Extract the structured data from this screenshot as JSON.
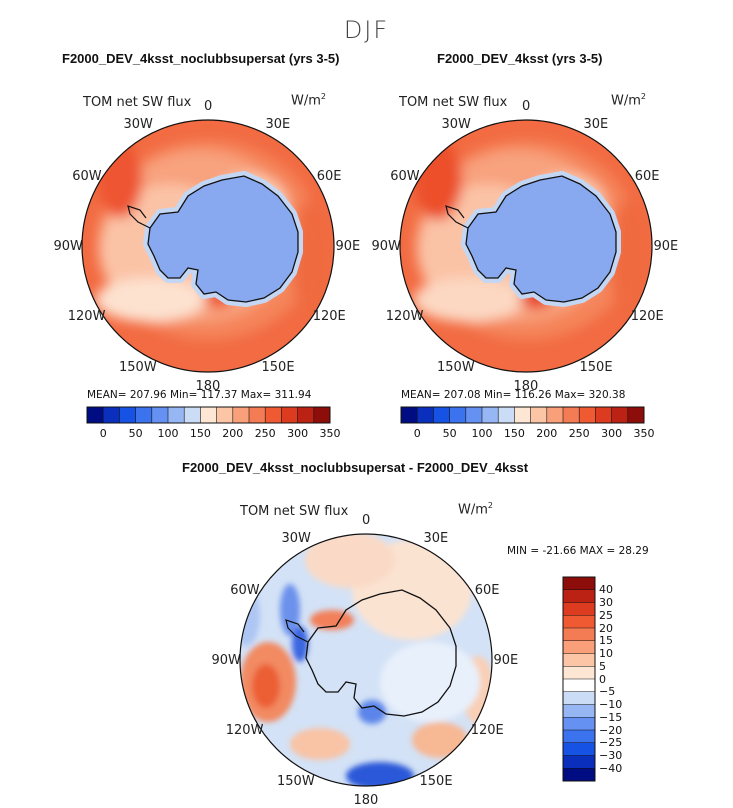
{
  "title": "DJF",
  "colors": {
    "ocean_high": "#f0643a",
    "ocean_mid": "#f7a57d",
    "ocean_low": "#fbd4bb",
    "antarctica": "#89aaf0",
    "antarctica_edge": "#c9dcf5",
    "diff_background": "#d6e4f6",
    "coastline": "#111111"
  },
  "panels": [
    {
      "title": "F2000_DEV_4ksst_noclubbsupersat (yrs 3-5)",
      "variable": "TOM net SW flux",
      "units": "W/m",
      "units_exp": "2",
      "stats": "MEAN= 207.96   Min= 117.37   Max= 311.94"
    },
    {
      "title": "F2000_DEV_4ksst (yrs 3-5)",
      "variable": "TOM net SW flux",
      "units": "W/m",
      "units_exp": "2",
      "stats": "MEAN= 207.08   Min= 116.26   Max= 320.38"
    },
    {
      "title": "F2000_DEV_4ksst_noclubbsupersat - F2000_DEV_4ksst",
      "variable": "TOM net SW flux",
      "units": "W/m",
      "units_exp": "2",
      "stats": "MIN = -21.66  MAX =   28.29"
    }
  ],
  "longitude_labels": [
    "0",
    "30E",
    "60E",
    "90E",
    "120E",
    "150E",
    "180",
    "150W",
    "120W",
    "90W",
    "60W",
    "30W"
  ],
  "colorbar_top": {
    "colors": [
      "#000c82",
      "#0a2fbd",
      "#1652e3",
      "#3b73ef",
      "#6491f2",
      "#97b6f4",
      "#cbdcf6",
      "#fde6d4",
      "#fcc6a6",
      "#f9a07a",
      "#f47c55",
      "#ef5a33",
      "#dd3b1f",
      "#bb2214",
      "#8c0d0a"
    ],
    "labels": [
      "0",
      "50",
      "100",
      "150",
      "200",
      "250",
      "300",
      "350"
    ]
  },
  "colorbar_diff": {
    "colors": [
      "#8c0d0a",
      "#bb2214",
      "#dd3b1f",
      "#ef5a33",
      "#f47c55",
      "#f9a07a",
      "#fcc6a6",
      "#fde6d4",
      "#ffffff",
      "#cbdcf6",
      "#97b6f4",
      "#6491f2",
      "#3b73ef",
      "#1652e3",
      "#0a2fbd",
      "#000c82"
    ],
    "labels": [
      "40",
      "30",
      "25",
      "20",
      "15",
      "10",
      "5",
      "0",
      "−5",
      "−10",
      "−15",
      "−20",
      "−25",
      "−30",
      "−40"
    ]
  }
}
